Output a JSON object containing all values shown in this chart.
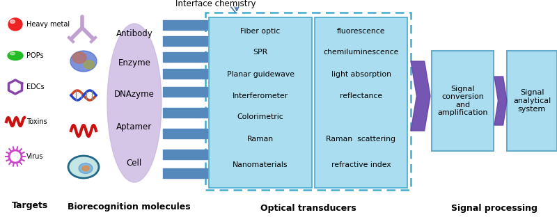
{
  "bg_color": "#ffffff",
  "targets": [
    "Heavy metal",
    "POPs",
    "EDCs",
    "Toxins",
    "Virus"
  ],
  "biorecognition": [
    "Antibody",
    "Enzyme",
    "DNAzyme",
    "Aptamer",
    "Cell"
  ],
  "optical_left": [
    "Fiber optic",
    "SPR",
    "Planar guidewave",
    "Interferometer",
    "Colorimetric",
    "Raman",
    "Nanomaterials"
  ],
  "optical_right": [
    "fluorescence",
    "chemiluminescence",
    "light absorption",
    "reflectance",
    "",
    "Raman  scattering",
    "refractive index"
  ],
  "signal_box1": "Signal\nconversion\nand\namplification",
  "signal_box2": "Signal\nanalytical\nsystem",
  "interface_label": "Interface chemistry",
  "optical_label": "Optical transducers",
  "biorecog_label": "Biorecognition molecules",
  "targets_label": "Targets",
  "signal_label": "Signal processing",
  "oval_color": "#c8b4e0",
  "stripe_color": "#5588bb",
  "outer_dash_color": "#44aacc",
  "inner_box_color": "#aaddf0",
  "signal_box_color": "#aaddf0",
  "signal_box_border": "#66aacc",
  "arrow_color": "#6644aa",
  "icon_red": "#ee2222",
  "icon_green": "#22bb22",
  "icon_purple": "#8844aa",
  "icon_magenta": "#cc44cc"
}
